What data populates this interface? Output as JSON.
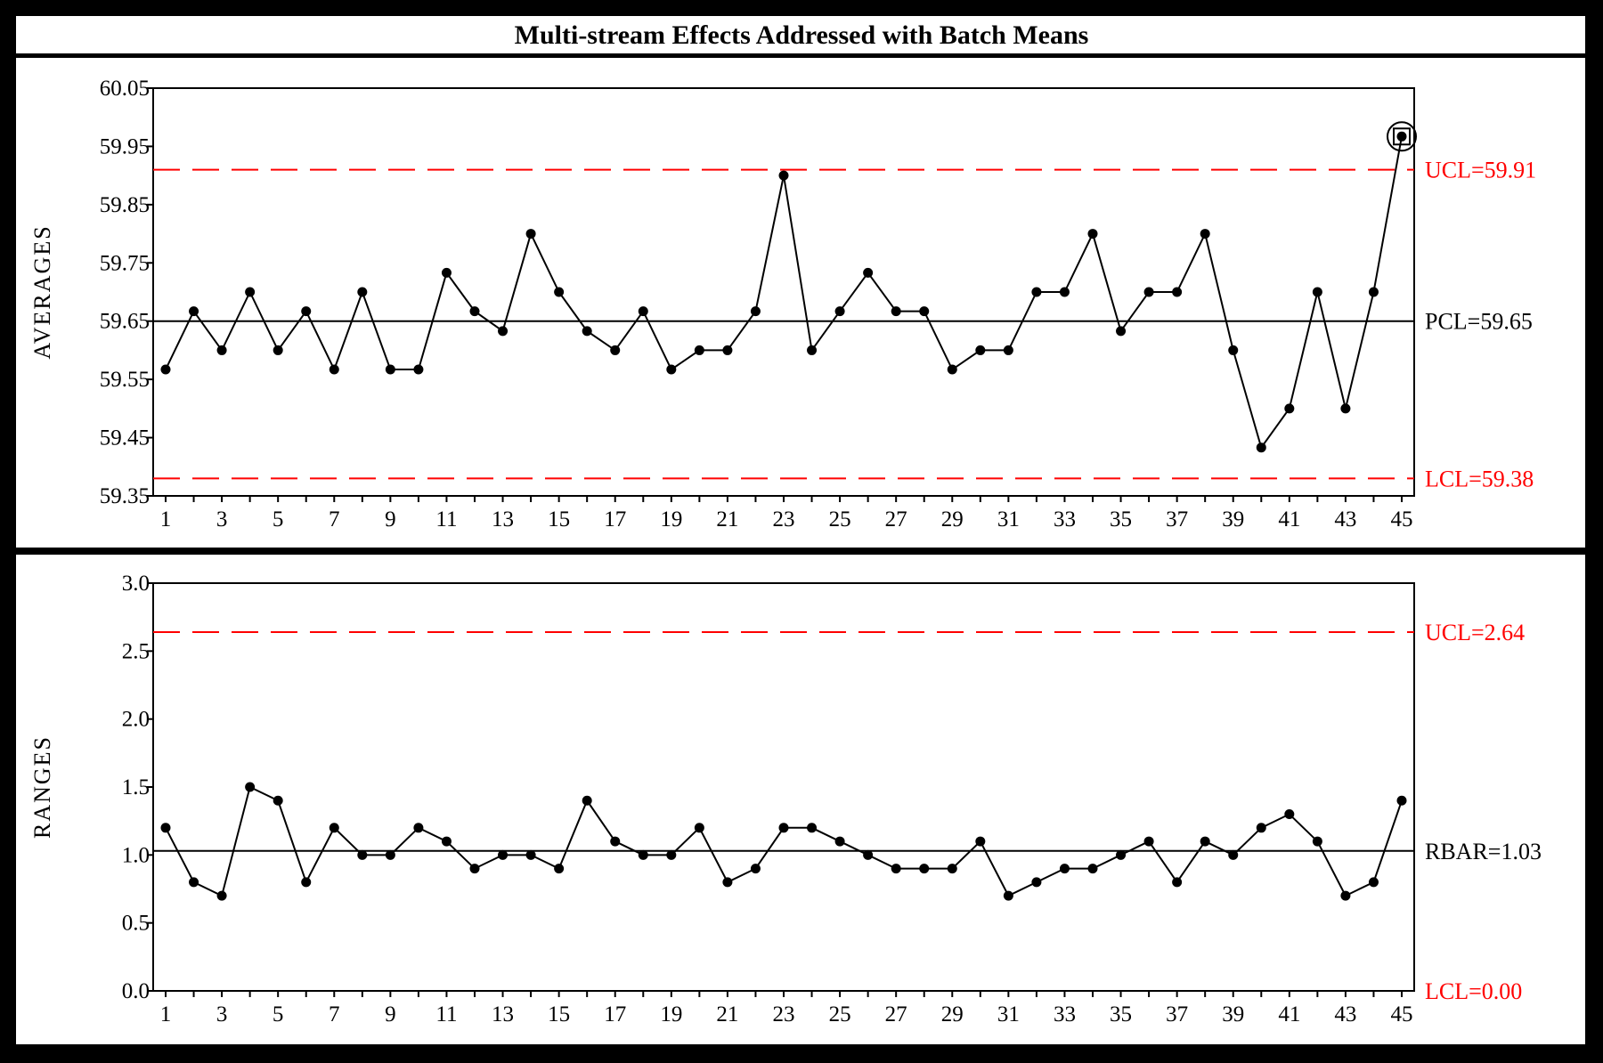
{
  "chart_data": {
    "title": "Multi-stream Effects Addressed with Batch Means",
    "colors": {
      "background": "#000000",
      "panel": "#ffffff",
      "line": "#000000",
      "limit": "#ff0000"
    },
    "x": [
      1,
      2,
      3,
      4,
      5,
      6,
      7,
      8,
      9,
      10,
      11,
      12,
      13,
      14,
      15,
      16,
      17,
      18,
      19,
      20,
      21,
      22,
      23,
      24,
      25,
      26,
      27,
      28,
      29,
      30,
      31,
      32,
      33,
      34,
      35,
      36,
      37,
      38,
      39,
      40,
      41,
      42,
      43,
      44,
      45
    ],
    "x_tick_labels": [
      "1",
      "3",
      "5",
      "7",
      "9",
      "11",
      "13",
      "15",
      "17",
      "19",
      "21",
      "23",
      "25",
      "27",
      "29",
      "31",
      "33",
      "35",
      "37",
      "39",
      "41",
      "43",
      "45"
    ],
    "panels": [
      {
        "type": "line",
        "ylabel": "AVERAGES",
        "ylim": [
          59.35,
          60.05
        ],
        "y_ticks": [
          "59.35",
          "59.45",
          "59.55",
          "59.65",
          "59.75",
          "59.85",
          "59.95",
          "60.05"
        ],
        "values": [
          59.567,
          59.667,
          59.6,
          59.7,
          59.6,
          59.667,
          59.567,
          59.7,
          59.567,
          59.567,
          59.733,
          59.667,
          59.633,
          59.8,
          59.7,
          59.633,
          59.6,
          59.667,
          59.567,
          59.6,
          59.6,
          59.667,
          59.9,
          59.6,
          59.667,
          59.733,
          59.667,
          59.667,
          59.567,
          59.6,
          59.6,
          59.7,
          59.7,
          59.8,
          59.633,
          59.7,
          59.7,
          59.8,
          59.6,
          59.433,
          59.5,
          59.7,
          59.5,
          59.7,
          59.967
        ],
        "flagged_point_index": 44,
        "center": {
          "value": 59.65,
          "label": "PCL=59.65"
        },
        "ucl": {
          "value": 59.91,
          "label": "UCL=59.91"
        },
        "lcl": {
          "value": 59.38,
          "label": "LCL=59.38"
        }
      },
      {
        "type": "line",
        "ylabel": "RANGES",
        "ylim": [
          0.0,
          3.0
        ],
        "y_ticks": [
          "0.0",
          "0.5",
          "1.0",
          "1.5",
          "2.0",
          "2.5",
          "3.0"
        ],
        "values": [
          1.2,
          0.8,
          0.7,
          1.5,
          1.4,
          0.8,
          1.2,
          1.0,
          1.0,
          1.2,
          1.1,
          0.9,
          1.0,
          1.0,
          0.9,
          1.4,
          1.1,
          1.0,
          1.0,
          1.2,
          0.8,
          0.9,
          1.2,
          1.2,
          1.1,
          1.0,
          0.9,
          0.9,
          0.9,
          1.1,
          0.7,
          0.8,
          0.9,
          0.9,
          1.0,
          1.1,
          0.8,
          1.1,
          1.0,
          1.2,
          1.3,
          1.1,
          0.7,
          0.8,
          1.4
        ],
        "center": {
          "value": 1.03,
          "label": "RBAR=1.03"
        },
        "ucl": {
          "value": 2.64,
          "label": "UCL=2.64"
        },
        "lcl": {
          "value": 0.0,
          "label": "LCL=0.00"
        }
      }
    ]
  }
}
